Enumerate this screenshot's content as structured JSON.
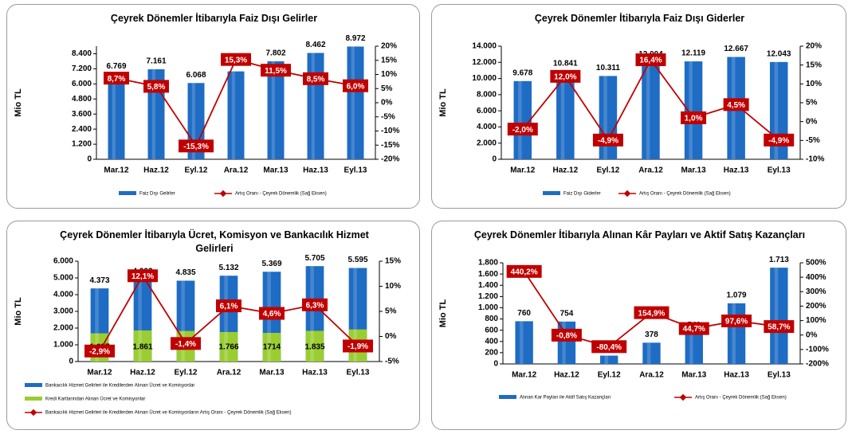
{
  "chart_data": [
    {
      "type": "combo",
      "title": "Çeyrek Dönemler İtibarıyla Faiz Dışı Gelirler",
      "y_label": "Mio TL",
      "categories": [
        "Mar.12",
        "Haz.12",
        "Eyl.12",
        "Ara.12",
        "Mar.13",
        "Haz.13",
        "Eyl.13"
      ],
      "series": [
        {
          "name": "Faiz Dışı Gelirler",
          "color": "#1e6cc4",
          "values": [
            6769,
            7161,
            6068,
            6994,
            7802,
            8462,
            8972
          ],
          "value_labels": [
            "6.769",
            "7.161",
            "6.068",
            "6.994",
            "7.802",
            "8.462",
            "8.972"
          ]
        },
        {
          "name": "Artış Oranı - Çeyrek Dönemlik (Sağ Eksen)",
          "color": "#c00000",
          "axis": "y2",
          "values": [
            8.7,
            5.8,
            -15.3,
            15.3,
            11.5,
            8.5,
            6.0
          ],
          "value_labels": [
            "8,7%",
            "5,8%",
            "-15,3%",
            "15,3%",
            "11,5%",
            "8,5%",
            "6,0%"
          ]
        }
      ],
      "ylim": [
        0,
        9000
      ],
      "yticks": [
        0,
        {
          "value": 1200,
          "label": "1.200"
        },
        {
          "value": 2400,
          "label": "2.400"
        },
        {
          "value": 3600,
          "label": "3.600"
        },
        {
          "value": 4800,
          "label": "4.800"
        },
        {
          "value": 6000,
          "label": "6.000"
        },
        {
          "value": 7200,
          "label": "7.200"
        },
        {
          "value": 8400,
          "label": "8.400"
        }
      ],
      "y2lim": [
        -20,
        20
      ],
      "y2ticks": [
        {
          "value": -20,
          "label": "-20%"
        },
        {
          "value": -15,
          "label": "-15%"
        },
        {
          "value": -10,
          "label": "-10%"
        },
        {
          "value": -5,
          "label": "-5%"
        },
        {
          "value": 0,
          "label": "0%"
        },
        {
          "value": 5,
          "label": "5%"
        },
        {
          "value": 10,
          "label": "10%"
        },
        {
          "value": 15,
          "label": "15%"
        },
        {
          "value": 20,
          "label": "20%"
        }
      ]
    },
    {
      "type": "combo",
      "title": "Çeyrek Dönemler İtibarıyla Faiz Dışı Giderler",
      "y_label": "Mio TL",
      "categories": [
        "Mar.12",
        "Haz.12",
        "Eyl.12",
        "Ara.12",
        "Mar.13",
        "Haz.13",
        "Eyl.13"
      ],
      "series": [
        {
          "name": "Faiz Dışı Giderler",
          "color": "#1e6cc4",
          "values": [
            9678,
            10841,
            10311,
            12004,
            12119,
            12667,
            12043
          ],
          "value_labels": [
            "9.678",
            "10.841",
            "10.311",
            "12.004",
            "12.119",
            "12.667",
            "12.043"
          ]
        },
        {
          "name": "Artış Oranı - Çeyrek Dönemlik (Sağ Eksen)",
          "color": "#c00000",
          "axis": "y2",
          "values": [
            -2.0,
            12.0,
            -4.9,
            16.4,
            1.0,
            4.5,
            -4.9
          ],
          "value_labels": [
            "-2,0%",
            "12,0%",
            "-4,9%",
            "16,4%",
            "1,0%",
            "4,5%",
            "-4,9%"
          ]
        }
      ],
      "ylim": [
        0,
        14000
      ],
      "yticks": [
        0,
        {
          "value": 2000,
          "label": "2.000"
        },
        {
          "value": 4000,
          "label": "4.000"
        },
        {
          "value": 6000,
          "label": "6.000"
        },
        {
          "value": 8000,
          "label": "8.000"
        },
        {
          "value": 10000,
          "label": "10.000"
        },
        {
          "value": 12000,
          "label": "12.000"
        },
        {
          "value": 14000,
          "label": "14.000"
        }
      ],
      "y2lim": [
        -10,
        20
      ],
      "y2ticks": [
        {
          "value": -10,
          "label": "-10%"
        },
        {
          "value": -5,
          "label": "-5%"
        },
        {
          "value": 0,
          "label": "0%"
        },
        {
          "value": 5,
          "label": "5%"
        },
        {
          "value": 10,
          "label": "10%"
        },
        {
          "value": 15,
          "label": "15%"
        },
        {
          "value": 20,
          "label": "20%"
        }
      ]
    },
    {
      "type": "combo",
      "title": "Çeyrek Dönemler İtibarıyla Ücret, Komisyon ve Bankacılık Hizmet Gelirleri",
      "y_label": "Mio TL",
      "categories": [
        "Mar.12",
        "Haz.12",
        "Eyl.12",
        "Ara.12",
        "Mar.13",
        "Haz.13",
        "Eyl.13"
      ],
      "series": [
        {
          "name": "Bankacılık Hizmet Gelirleri ile Kredilerden Alınan Ücret ve Komisyonlar",
          "color": "#1e6cc4",
          "values": [
            4373,
            4903,
            4835,
            5132,
            5369,
            5705,
            5595
          ],
          "value_labels": [
            "4.373",
            "4.903",
            "4.835",
            "5.132",
            "5.369",
            "5.705",
            "5.595"
          ]
        },
        {
          "name": "Kredi Kartlarından Alınan Ücret ve Komisyonlar",
          "color": "#9acd32",
          "values": [
            1687,
            1861,
            1828,
            1766,
            1714,
            1835,
            1921
          ],
          "value_labels": [
            "1.687",
            "1.861",
            "1.828",
            "1.766",
            "1714",
            "1.835",
            "1.921"
          ]
        },
        {
          "name": "Bankacılık Hizmet Gelirleri ile Kredilerden Alınan Ücret ve Komisyonların Artış Oranı - Çeyrek Dönemlik (Sağ Eksen)",
          "color": "#c00000",
          "axis": "y2",
          "values": [
            -2.9,
            12.1,
            -1.4,
            6.1,
            4.6,
            6.3,
            -1.9
          ],
          "value_labels": [
            "-2,9%",
            "12,1%",
            "-1,4%",
            "6,1%",
            "4,6%",
            "6,3%",
            "-1,9%"
          ]
        }
      ],
      "ylim": [
        0,
        6000
      ],
      "yticks": [
        0,
        {
          "value": 1000,
          "label": "1.000"
        },
        {
          "value": 2000,
          "label": "2.000"
        },
        {
          "value": 3000,
          "label": "3.000"
        },
        {
          "value": 4000,
          "label": "4.000"
        },
        {
          "value": 5000,
          "label": "5.000"
        },
        {
          "value": 6000,
          "label": "6.000"
        }
      ],
      "y2lim": [
        -5,
        15
      ],
      "y2ticks": [
        {
          "value": -5,
          "label": "-5%"
        },
        {
          "value": 0,
          "label": "0%"
        },
        {
          "value": 5,
          "label": "5%"
        },
        {
          "value": 10,
          "label": "10%"
        },
        {
          "value": 15,
          "label": "15%"
        }
      ]
    },
    {
      "type": "combo",
      "title": "Çeyrek Dönemler İtibarıyla Alınan Kâr Payları ve Aktif Satış Kazançları",
      "y_label": "Mio TL",
      "categories": [
        "Mar.12",
        "Haz.12",
        "Eyl.12",
        "Ara.12",
        "Mar.13",
        "Haz.13",
        "Eyl.13"
      ],
      "series": [
        {
          "name": "Alınan Kar Payları ile Aktif Satış Kazançları",
          "color": "#1e6cc4",
          "values": [
            760,
            754,
            148,
            378,
            546,
            1079,
            1713
          ],
          "value_labels": [
            "760",
            "754",
            "148",
            "378",
            "546",
            "1.079",
            "1.713"
          ]
        },
        {
          "name": "Artış Oranı - Çeyrek Dönemlik (Sağ Eksen)",
          "color": "#c00000",
          "axis": "y2",
          "values": [
            440.2,
            -0.8,
            -80.4,
            154.9,
            44.7,
            97.6,
            58.7
          ],
          "value_labels": [
            "440,2%",
            "-0,8%",
            "-80,4%",
            "154,9%",
            "44,7%",
            "97,6%",
            "58,7%"
          ]
        }
      ],
      "ylim": [
        0,
        1800
      ],
      "yticks": [
        0,
        200,
        400,
        600,
        800,
        {
          "value": 1000,
          "label": "1.000"
        },
        {
          "value": 1200,
          "label": "1.200"
        },
        {
          "value": 1400,
          "label": "1.400"
        },
        {
          "value": 1600,
          "label": "1.600"
        },
        {
          "value": 1800,
          "label": "1.800"
        }
      ],
      "y2lim": [
        -200,
        500
      ],
      "y2ticks": [
        {
          "value": -200,
          "label": "-200%"
        },
        {
          "value": -100,
          "label": "-100%"
        },
        {
          "value": 0,
          "label": "0%"
        },
        {
          "value": 100,
          "label": "100%"
        },
        {
          "value": 200,
          "label": "200%"
        },
        {
          "value": 300,
          "label": "300%"
        },
        {
          "value": 400,
          "label": "400%"
        },
        {
          "value": 500,
          "label": "500%"
        }
      ]
    }
  ]
}
